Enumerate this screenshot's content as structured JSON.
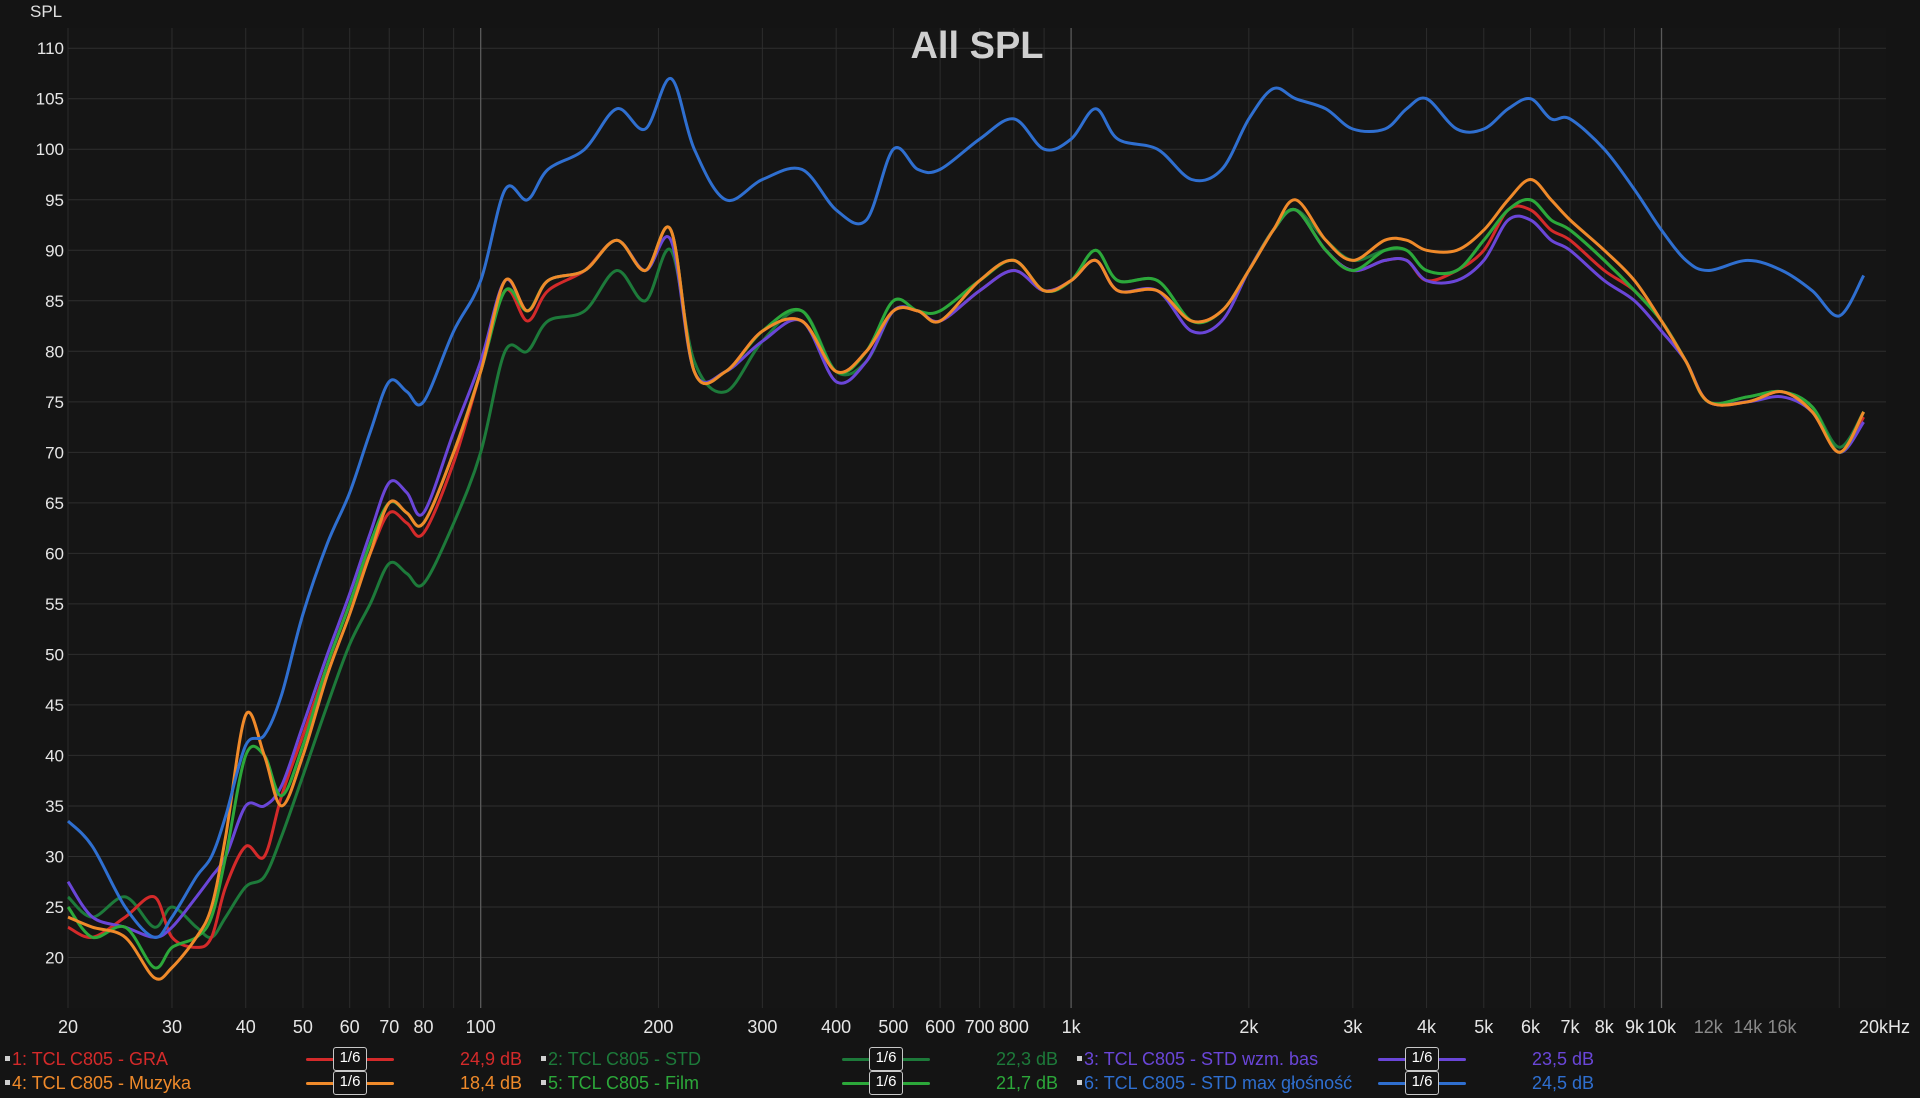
{
  "chart_data": {
    "type": "line",
    "title": "All SPL",
    "ylabel": "SPL",
    "xlabel": "",
    "xscale": "log",
    "xlim": [
      20,
      24000
    ],
    "ylim": [
      15,
      112
    ],
    "grid": true,
    "legend_position": "bottom",
    "y_ticks": [
      20,
      25,
      30,
      35,
      40,
      45,
      50,
      55,
      60,
      65,
      70,
      75,
      80,
      85,
      90,
      95,
      100,
      105,
      110
    ],
    "x_ticks": [
      {
        "f": 20,
        "label": "20"
      },
      {
        "f": 30,
        "label": "30"
      },
      {
        "f": 40,
        "label": "40"
      },
      {
        "f": 50,
        "label": "50"
      },
      {
        "f": 60,
        "label": "60"
      },
      {
        "f": 70,
        "label": "70"
      },
      {
        "f": 80,
        "label": "80"
      },
      {
        "f": 100,
        "label": "100"
      },
      {
        "f": 200,
        "label": "200"
      },
      {
        "f": 300,
        "label": "300"
      },
      {
        "f": 400,
        "label": "400"
      },
      {
        "f": 500,
        "label": "500"
      },
      {
        "f": 600,
        "label": "600"
      },
      {
        "f": 700,
        "label": "700"
      },
      {
        "f": 800,
        "label": "800"
      },
      {
        "f": 1000,
        "label": "1k"
      },
      {
        "f": 2000,
        "label": "2k"
      },
      {
        "f": 3000,
        "label": "3k"
      },
      {
        "f": 4000,
        "label": "4k"
      },
      {
        "f": 5000,
        "label": "5k"
      },
      {
        "f": 6000,
        "label": "6k"
      },
      {
        "f": 7000,
        "label": "7k"
      },
      {
        "f": 8000,
        "label": "8k"
      },
      {
        "f": 9000,
        "label": "9k"
      },
      {
        "f": 10000,
        "label": "10k"
      },
      {
        "f": 12000,
        "label": "12k",
        "dim": true
      },
      {
        "f": 14000,
        "label": "14k",
        "dim": true
      },
      {
        "f": 16000,
        "label": "16k",
        "dim": true
      },
      {
        "f": 20000,
        "label": "20kHz"
      }
    ],
    "series": [
      {
        "name": "1: TCL C805 - GRA",
        "color": "#d42a2a",
        "smoothing": "1/6",
        "value": "24,9 dB",
        "x": [
          20,
          22,
          25,
          28,
          30,
          33,
          35,
          37,
          40,
          43,
          46,
          50,
          55,
          60,
          65,
          70,
          75,
          80,
          90,
          100,
          110,
          120,
          130,
          150,
          170,
          190,
          210,
          230,
          260,
          300,
          350,
          400,
          450,
          500,
          550,
          600,
          700,
          800,
          900,
          1000,
          1100,
          1200,
          1400,
          1600,
          1800,
          2000,
          2200,
          2400,
          2700,
          3000,
          3400,
          3700,
          4000,
          4500,
          5000,
          5500,
          6000,
          6500,
          7000,
          8000,
          9000,
          10000,
          11000,
          12000,
          14000,
          16000,
          18000,
          20000,
          22000
        ],
        "y": [
          23,
          22,
          24,
          26,
          22,
          21,
          22,
          27,
          31,
          30,
          36,
          42,
          49,
          55,
          60,
          64,
          63,
          62,
          69,
          78,
          86,
          83,
          86,
          88,
          91,
          88,
          92,
          78,
          78,
          82,
          83,
          78,
          80,
          84,
          84,
          83,
          86,
          88,
          86,
          87,
          89,
          86,
          86,
          83,
          84,
          88,
          92,
          94,
          90,
          88,
          89,
          89,
          87,
          88,
          90,
          94,
          94,
          92,
          91,
          88,
          86,
          83,
          79,
          75,
          75,
          76,
          74,
          70,
          73.5
        ]
      },
      {
        "name": "2: TCL C805 - STD",
        "color": "#1d7a3a",
        "smoothing": "1/6",
        "value": "22,3 dB",
        "x": [
          20,
          22,
          25,
          28,
          30,
          33,
          35,
          37,
          40,
          43,
          46,
          50,
          55,
          60,
          65,
          70,
          75,
          80,
          90,
          100,
          110,
          120,
          130,
          150,
          170,
          190,
          210,
          230,
          260,
          300,
          350,
          400,
          450,
          500,
          550,
          600,
          700,
          800,
          900,
          1000,
          1100,
          1200,
          1400,
          1600,
          1800,
          2000,
          2200,
          2400,
          2700,
          3000,
          3400,
          3700,
          4000,
          4500,
          5000,
          5500,
          6000,
          6500,
          7000,
          8000,
          9000,
          10000,
          11000,
          12000,
          14000,
          16000,
          18000,
          20000,
          22000
        ],
        "y": [
          26,
          24,
          26,
          23,
          25,
          23,
          22,
          24,
          27,
          28,
          32,
          38,
          45,
          51,
          55,
          59,
          58,
          57,
          63,
          70,
          80,
          80,
          83,
          84,
          88,
          85,
          90,
          79,
          76,
          81,
          84,
          78,
          79,
          84,
          84,
          83,
          87,
          89,
          86,
          87,
          90,
          87,
          87,
          83,
          84,
          88,
          92,
          94,
          91,
          89,
          90,
          90,
          88,
          88,
          91,
          94,
          95,
          93,
          92,
          89,
          86,
          83,
          79,
          75,
          75.5,
          76,
          74.5,
          70.5,
          74
        ]
      },
      {
        "name": "3: TCL C805 - STD wzm. bas",
        "color": "#6a46d8",
        "smoothing": "1/6",
        "value": "23,5 dB",
        "x": [
          20,
          22,
          25,
          28,
          30,
          33,
          35,
          37,
          40,
          43,
          46,
          50,
          55,
          60,
          65,
          70,
          75,
          80,
          90,
          100,
          110,
          120,
          130,
          150,
          170,
          190,
          210,
          230,
          260,
          300,
          350,
          400,
          450,
          500,
          550,
          600,
          700,
          800,
          900,
          1000,
          1100,
          1200,
          1400,
          1600,
          1800,
          2000,
          2200,
          2400,
          2700,
          3000,
          3400,
          3700,
          4000,
          4500,
          5000,
          5500,
          6000,
          6500,
          7000,
          8000,
          9000,
          10000,
          11000,
          12000,
          14000,
          16000,
          18000,
          20000,
          22000
        ],
        "y": [
          27.5,
          24,
          23,
          22,
          23,
          26,
          28,
          30,
          35,
          35,
          37,
          43,
          50,
          56,
          62,
          67,
          66,
          64,
          72,
          79,
          87,
          84,
          87,
          88,
          91,
          88,
          91,
          78,
          78,
          81,
          83,
          77,
          79,
          84,
          84,
          83,
          86,
          88,
          86,
          87,
          89,
          86,
          86,
          82,
          83,
          88,
          92,
          94,
          90,
          88,
          89,
          89,
          87,
          87,
          89,
          93,
          93,
          91,
          90,
          87,
          85,
          82,
          79,
          75,
          75,
          75.5,
          74,
          70,
          73
        ]
      },
      {
        "name": "4: TCL C805 - Muzyka",
        "color": "#f08a2a",
        "smoothing": "1/6",
        "value": "18,4 dB",
        "x": [
          20,
          22,
          25,
          28,
          30,
          33,
          35,
          37,
          40,
          43,
          46,
          50,
          55,
          60,
          65,
          70,
          75,
          80,
          90,
          100,
          110,
          120,
          130,
          150,
          170,
          190,
          210,
          230,
          260,
          300,
          350,
          400,
          450,
          500,
          550,
          600,
          700,
          800,
          900,
          1000,
          1100,
          1200,
          1400,
          1600,
          1800,
          2000,
          2200,
          2400,
          2700,
          3000,
          3400,
          3700,
          4000,
          4500,
          5000,
          5500,
          6000,
          6500,
          7000,
          8000,
          9000,
          10000,
          11000,
          12000,
          14000,
          16000,
          18000,
          20000,
          22000
        ],
        "y": [
          24,
          23,
          22,
          18,
          19,
          22,
          25,
          32,
          44,
          40,
          35,
          40,
          48,
          54,
          60,
          65,
          64,
          63,
          70,
          78,
          87,
          84,
          87,
          88,
          91,
          88,
          92,
          78,
          78,
          82,
          83,
          78,
          80,
          84,
          84,
          83,
          87,
          89,
          86,
          87,
          89,
          86,
          86,
          83,
          84,
          88,
          92,
          95,
          91,
          89,
          91,
          91,
          90,
          90,
          92,
          95,
          97,
          95,
          93,
          90,
          87,
          83,
          79,
          75,
          75,
          76,
          74,
          70,
          74
        ]
      },
      {
        "name": "5: TCL C805 - Film",
        "color": "#2ca83a",
        "smoothing": "1/6",
        "value": "21,7 dB",
        "x": [
          20,
          22,
          25,
          28,
          30,
          33,
          35,
          37,
          40,
          43,
          46,
          50,
          55,
          60,
          65,
          70,
          75,
          80,
          90,
          100,
          110,
          120,
          130,
          150,
          170,
          190,
          210,
          230,
          260,
          300,
          350,
          400,
          450,
          500,
          550,
          600,
          700,
          800,
          900,
          1000,
          1100,
          1200,
          1400,
          1600,
          1800,
          2000,
          2200,
          2400,
          2700,
          3000,
          3400,
          3700,
          4000,
          4500,
          5000,
          5500,
          6000,
          6500,
          7000,
          8000,
          9000,
          10000,
          11000,
          12000,
          14000,
          16000,
          18000,
          20000,
          22000
        ],
        "y": [
          25,
          22,
          23,
          19,
          21,
          22,
          24,
          30,
          40,
          40,
          36,
          41,
          49,
          55,
          61,
          65,
          64,
          63,
          70,
          78,
          86,
          84,
          87,
          88,
          91,
          88,
          92,
          78,
          78,
          82,
          84,
          78,
          80,
          85,
          84,
          84,
          87,
          89,
          86,
          87,
          90,
          87,
          87,
          83,
          84,
          88,
          92,
          94,
          90,
          88,
          90,
          90,
          88,
          88,
          91,
          94,
          95,
          93,
          92,
          89,
          86,
          83,
          79,
          75,
          75.5,
          76,
          74.5,
          70,
          74
        ]
      },
      {
        "name": "6: TCL C805 - STD max głośność",
        "color": "#2f6fd0",
        "smoothing": "1/6",
        "value": "24,5 dB",
        "x": [
          20,
          22,
          25,
          28,
          30,
          33,
          35,
          37,
          40,
          43,
          46,
          50,
          55,
          60,
          65,
          70,
          75,
          80,
          90,
          100,
          110,
          120,
          130,
          150,
          170,
          190,
          210,
          230,
          260,
          300,
          350,
          400,
          450,
          500,
          550,
          600,
          700,
          800,
          900,
          1000,
          1100,
          1200,
          1400,
          1600,
          1800,
          2000,
          2200,
          2400,
          2700,
          3000,
          3400,
          3700,
          4000,
          4500,
          5000,
          5500,
          6000,
          6500,
          7000,
          8000,
          9000,
          10000,
          11000,
          12000,
          14000,
          16000,
          18000,
          20000,
          22000
        ],
        "y": [
          33.5,
          31,
          25,
          22,
          24,
          28,
          30,
          34,
          41,
          42,
          46,
          54,
          61,
          66,
          72,
          77,
          76,
          75,
          82,
          87,
          96,
          95,
          98,
          100,
          104,
          102,
          107,
          100,
          95,
          97,
          98,
          94,
          93,
          100,
          98,
          98,
          101,
          103,
          100,
          101,
          104,
          101,
          100,
          97,
          98,
          103,
          106,
          105,
          104,
          102,
          102,
          104,
          105,
          102,
          102,
          104,
          105,
          103,
          103,
          100,
          96,
          92,
          89,
          88,
          89,
          88,
          86,
          83.5,
          87.5
        ]
      }
    ]
  }
}
